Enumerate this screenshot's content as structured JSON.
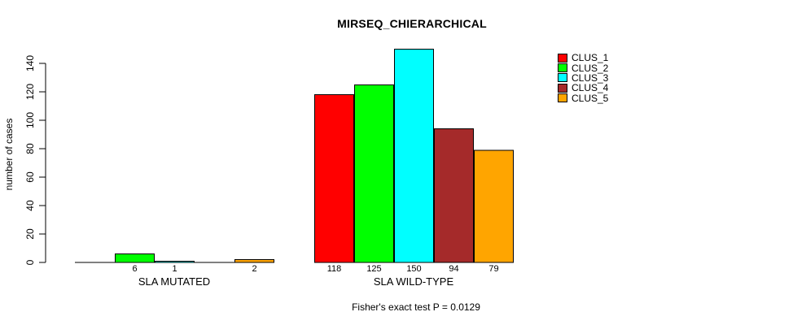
{
  "chart_data": {
    "type": "bar",
    "title": "MIRSEQ_CHIERARCHICAL",
    "ylabel": "number of cases",
    "ylim": [
      0,
      140
    ],
    "yticks": [
      0,
      20,
      40,
      60,
      80,
      100,
      120,
      140
    ],
    "grid": false,
    "groups": [
      "SLA MUTATED",
      "SLA WILD-TYPE"
    ],
    "series": [
      {
        "name": "CLUS_1",
        "color": "#FF0000",
        "values": [
          0,
          118
        ]
      },
      {
        "name": "CLUS_2",
        "color": "#00FF00",
        "values": [
          6,
          125
        ]
      },
      {
        "name": "CLUS_3",
        "color": "#00FFFF",
        "values": [
          1,
          150
        ]
      },
      {
        "name": "CLUS_4",
        "color": "#A52A2A",
        "values": [
          0,
          94
        ]
      },
      {
        "name": "CLUS_5",
        "color": "#FFA500",
        "values": [
          2,
          79
        ]
      }
    ],
    "bar_value_labels": {
      "shown_below_bars": true,
      "zero_values_unlabeled": true
    },
    "legend": {
      "position": "right",
      "entries": [
        "CLUS_1",
        "CLUS_2",
        "CLUS_3",
        "CLUS_4",
        "CLUS_5"
      ]
    },
    "annotation": "Fisher's exact test P = 0.0129",
    "colors": {
      "axis": "#000000",
      "background": "#FFFFFF"
    }
  }
}
